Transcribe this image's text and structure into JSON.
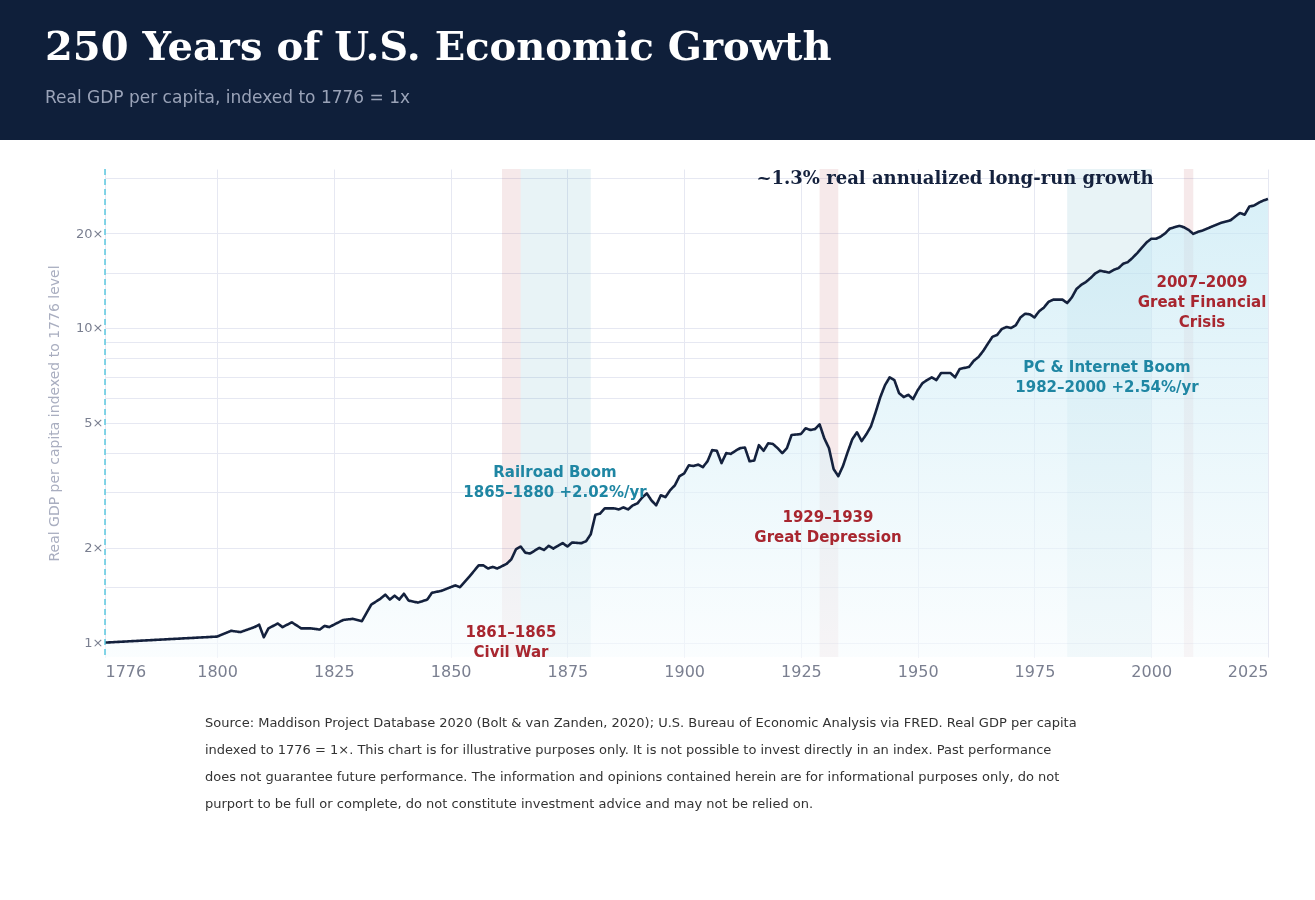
{
  "chart_data": {
    "type": "area",
    "title": "250 Years of U.S. Economic Growth",
    "subtitle": "Real GDP per capita, indexed to 1776 = 1x",
    "ylabel": "Real GDP per capita indexed to 1776 level",
    "x": [
      1776,
      1800,
      1803,
      1805,
      1808,
      1809,
      1810,
      1811,
      1813,
      1814,
      1816,
      1818,
      1820,
      1822,
      1823,
      1824,
      1826,
      1827,
      1829,
      1831,
      1833,
      1835,
      1836,
      1837,
      1838,
      1839,
      1840,
      1841,
      1843,
      1845,
      1846,
      1848,
      1850,
      1851,
      1852,
      1854,
      1856,
      1857,
      1858,
      1859,
      1860,
      1862,
      1863,
      1864,
      1865,
      1866,
      1867,
      1868,
      1869,
      1870,
      1871,
      1872,
      1873,
      1874,
      1875,
      1876,
      1878,
      1879,
      1880,
      1881,
      1882,
      1883,
      1885,
      1886,
      1887,
      1888,
      1889,
      1890,
      1891,
      1892,
      1893,
      1894,
      1895,
      1896,
      1897,
      1898,
      1899,
      1900,
      1901,
      1902,
      1903,
      1904,
      1905,
      1906,
      1907,
      1908,
      1909,
      1910,
      1911,
      1912,
      1913,
      1914,
      1915,
      1916,
      1917,
      1918,
      1919,
      1920,
      1921,
      1922,
      1923,
      1925,
      1926,
      1927,
      1928,
      1929,
      1930,
      1931,
      1932,
      1933,
      1934,
      1935,
      1936,
      1937,
      1938,
      1939,
      1940,
      1941,
      1942,
      1943,
      1944,
      1945,
      1946,
      1947,
      1948,
      1949,
      1950,
      1951,
      1952,
      1953,
      1954,
      1955,
      1957,
      1958,
      1959,
      1961,
      1962,
      1963,
      1964,
      1965,
      1966,
      1967,
      1968,
      1969,
      1970,
      1971,
      1972,
      1973,
      1974,
      1975,
      1976,
      1977,
      1978,
      1979,
      1981,
      1982,
      1983,
      1984,
      1985,
      1986,
      1987,
      1988,
      1989,
      1991,
      1992,
      1993,
      1994,
      1995,
      1996,
      1997,
      1998,
      1999,
      2000,
      2001,
      2002,
      2003,
      2004,
      2005,
      2006,
      2007,
      2008,
      2009,
      2010,
      2011,
      2012,
      2014,
      2015,
      2016,
      2017,
      2018,
      2019,
      2020,
      2021,
      2022,
      2023,
      2024,
      2025
    ],
    "series": [
      {
        "color": "#14213d",
        "values": [
          1.0,
          1.045,
          1.09,
          1.08,
          1.12,
          1.14,
          1.04,
          1.11,
          1.15,
          1.12,
          1.16,
          1.11,
          1.11,
          1.1,
          1.13,
          1.12,
          1.16,
          1.18,
          1.19,
          1.17,
          1.32,
          1.38,
          1.42,
          1.37,
          1.41,
          1.37,
          1.43,
          1.36,
          1.34,
          1.37,
          1.44,
          1.46,
          1.5,
          1.52,
          1.5,
          1.62,
          1.76,
          1.76,
          1.72,
          1.74,
          1.72,
          1.78,
          1.84,
          1.98,
          2.02,
          1.93,
          1.92,
          1.96,
          2.0,
          1.97,
          2.03,
          1.99,
          2.03,
          2.07,
          2.02,
          2.08,
          2.07,
          2.1,
          2.21,
          2.55,
          2.57,
          2.67,
          2.67,
          2.65,
          2.69,
          2.65,
          2.73,
          2.77,
          2.89,
          2.98,
          2.83,
          2.73,
          2.94,
          2.9,
          3.05,
          3.16,
          3.38,
          3.45,
          3.66,
          3.64,
          3.68,
          3.61,
          3.77,
          4.09,
          4.07,
          3.72,
          4.0,
          3.98,
          4.07,
          4.15,
          4.17,
          3.77,
          3.79,
          4.24,
          4.07,
          4.3,
          4.28,
          4.15,
          4.0,
          4.15,
          4.57,
          4.6,
          4.8,
          4.74,
          4.77,
          4.94,
          4.46,
          4.15,
          3.56,
          3.38,
          3.64,
          4.03,
          4.43,
          4.66,
          4.37,
          4.59,
          4.87,
          5.4,
          6.03,
          6.58,
          6.97,
          6.83,
          6.21,
          6.03,
          6.13,
          5.94,
          6.34,
          6.67,
          6.83,
          6.97,
          6.83,
          7.19,
          7.19,
          6.97,
          7.41,
          7.52,
          7.86,
          8.08,
          8.44,
          8.9,
          9.37,
          9.5,
          9.92,
          10.07,
          10.0,
          10.2,
          10.8,
          11.1,
          11.05,
          10.8,
          11.3,
          11.6,
          12.1,
          12.3,
          12.3,
          12.0,
          12.5,
          13.3,
          13.7,
          14.0,
          14.4,
          14.9,
          15.2,
          15.0,
          15.3,
          15.5,
          16.0,
          16.2,
          16.7,
          17.3,
          18.0,
          18.7,
          19.2,
          19.2,
          19.5,
          20.0,
          20.7,
          20.9,
          21.1,
          20.9,
          20.5,
          19.9,
          20.2,
          20.4,
          20.7,
          21.3,
          21.6,
          21.8,
          22.0,
          22.6,
          23.2,
          22.9,
          24.3,
          24.5,
          25.0,
          25.4,
          25.7
        ]
      }
    ],
    "xlim": [
      1776,
      2025
    ],
    "xticks": [
      1776,
      1800,
      1825,
      1850,
      1875,
      1900,
      1925,
      1950,
      1975,
      2000,
      2025
    ],
    "log": "y",
    "ylim": [
      0.9,
      32
    ],
    "yticks": [
      {
        "value": 1,
        "label": "1×"
      },
      {
        "value": 1.5,
        "label": null
      },
      {
        "value": 2,
        "label": "2×"
      },
      {
        "value": 3,
        "label": null
      },
      {
        "value": 4,
        "label": null
      },
      {
        "value": 5,
        "label": "5×"
      },
      {
        "value": 6,
        "label": null
      },
      {
        "value": 7,
        "label": null
      },
      {
        "value": 8,
        "label": null
      },
      {
        "value": 9,
        "label": null
      },
      {
        "value": 10,
        "label": "10×"
      },
      {
        "value": 15,
        "label": null
      },
      {
        "value": 20,
        "label": "20×"
      },
      {
        "value": 30,
        "label": null
      }
    ],
    "grid": true,
    "marker": "none",
    "line_style": "solid",
    "ref_lines": [
      {
        "axis": "x",
        "value": 1776,
        "color": "#5bc8e0",
        "line_style": "dashed"
      }
    ],
    "bands": [
      {
        "axis": "x",
        "from": 1861,
        "to": 1865,
        "label": "1861–1865\nCivil War",
        "color": "#a8262f"
      },
      {
        "axis": "x",
        "from": 1865,
        "to": 1880,
        "label": "Railroad Boom\n1865–1880  +2.02%/yr",
        "color": "#1f86a3"
      },
      {
        "axis": "x",
        "from": 1929,
        "to": 1933,
        "label": "1929–1939\nGreat Depression",
        "color": "#a8262f"
      },
      {
        "axis": "x",
        "from": 1982,
        "to": 2000,
        "label": "PC & Internet Boom\n1982–2000  +2.54%/yr",
        "color": "#1f86a3"
      },
      {
        "axis": "x",
        "from": 2007,
        "to": 2009,
        "label": "2007–2009\nGreat Financial\nCrisis",
        "color": "#a8262f"
      }
    ],
    "annotations": [
      "~1.3% real annualized long-run growth",
      "Source: Maddison Project Database 2020 (Bolt & van Zanden, 2020); U.S. Bureau of Economic Analysis via FRED. Real GDP per capita indexed to 1776 = 1×. This chart is for illustrative purposes only. It is not possible to invest directly in an index. Past performance does not guarantee future performance. The information and opinions contained herein are for informational purposes only, do not purport to be full or complete, do not constitute investment advice and may not be relied on."
    ]
  }
}
